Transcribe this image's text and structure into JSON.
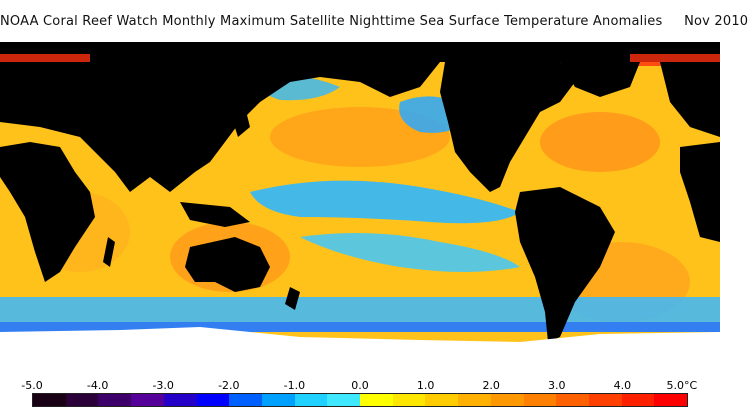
{
  "title": "NOAA Coral Reef Watch Monthly Maximum Satellite Nighttime Sea Surface Temperature Anomalies     Nov 2010",
  "legend": {
    "labels": [
      "-5.0",
      "-4.0",
      "-3.0",
      "-2.0",
      "-1.0",
      "0.0",
      "1.0",
      "2.0",
      "3.0",
      "4.0",
      "5.0"
    ],
    "unit": "°C",
    "colors": [
      "#1a0014",
      "#2c0038",
      "#3d006a",
      "#55009a",
      "#2400c8",
      "#0000ff",
      "#0060ff",
      "#00a0ff",
      "#20d0ff",
      "#40e8ff",
      "#ffff00",
      "#ffe600",
      "#ffcc00",
      "#ffb000",
      "#ff9800",
      "#ff8000",
      "#ff6000",
      "#ff4000",
      "#ff2000",
      "#ff0000"
    ]
  },
  "map": {
    "land_color": "#000000",
    "ice_color": "#ffffff",
    "ocean_base_color": "#ffcc22"
  }
}
